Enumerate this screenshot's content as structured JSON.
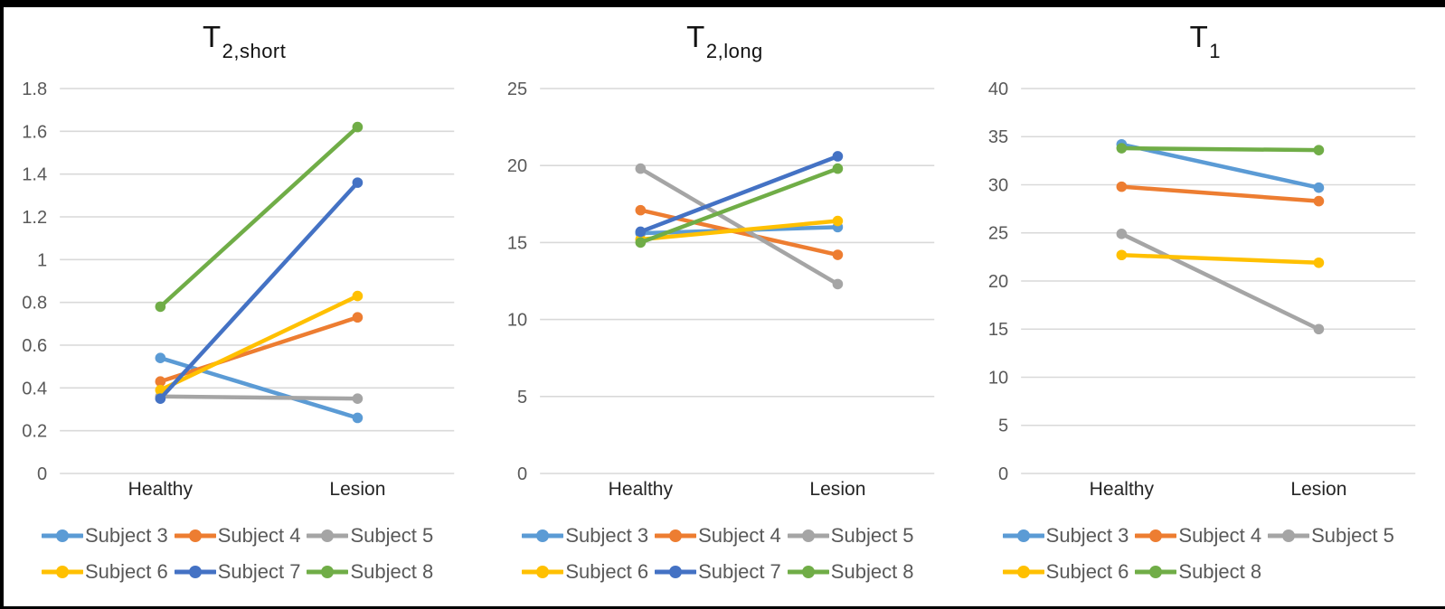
{
  "figure": {
    "background_color": "#FFFFFF",
    "border_color": "#000000",
    "gridline_color": "#D9D9D9",
    "tick_label_color": "#595959",
    "category_label_color": "#262626",
    "legend_text_color": "#595959"
  },
  "chart_data": [
    {
      "type": "line",
      "title_main": "T",
      "title_sub": "2,short",
      "categories": [
        "Healthy",
        "Lesion"
      ],
      "ylim": [
        0,
        1.8
      ],
      "ytick_step": 0.2,
      "yticks": [
        "0",
        "0.2",
        "0.4",
        "0.6",
        "0.8",
        "1",
        "1.2",
        "1.4",
        "1.6",
        "1.8"
      ],
      "grid": true,
      "legend_position": "bottom",
      "series": [
        {
          "name": "Subject 3",
          "color": "#5B9BD5",
          "values": [
            0.54,
            0.26
          ]
        },
        {
          "name": "Subject 4",
          "color": "#ED7D31",
          "values": [
            0.43,
            0.73
          ]
        },
        {
          "name": "Subject 5",
          "color": "#A5A5A5",
          "values": [
            0.36,
            0.35
          ]
        },
        {
          "name": "Subject 6",
          "color": "#FFC000",
          "values": [
            0.39,
            0.83
          ]
        },
        {
          "name": "Subject 7",
          "color": "#4472C4",
          "values": [
            0.35,
            1.36
          ]
        },
        {
          "name": "Subject 8",
          "color": "#70AD47",
          "values": [
            0.78,
            1.62
          ]
        }
      ]
    },
    {
      "type": "line",
      "title_main": "T",
      "title_sub": "2,long",
      "categories": [
        "Healthy",
        "Lesion"
      ],
      "ylim": [
        0,
        25
      ],
      "ytick_step": 5,
      "yticks": [
        "0",
        "5",
        "10",
        "15",
        "20",
        "25"
      ],
      "grid": true,
      "legend_position": "bottom",
      "series": [
        {
          "name": "Subject 3",
          "color": "#5B9BD5",
          "values": [
            15.6,
            16.0
          ]
        },
        {
          "name": "Subject 4",
          "color": "#ED7D31",
          "values": [
            17.1,
            14.2
          ]
        },
        {
          "name": "Subject 5",
          "color": "#A5A5A5",
          "values": [
            19.8,
            12.3
          ]
        },
        {
          "name": "Subject 6",
          "color": "#FFC000",
          "values": [
            15.2,
            16.4
          ]
        },
        {
          "name": "Subject 7",
          "color": "#4472C4",
          "values": [
            15.7,
            20.6
          ]
        },
        {
          "name": "Subject 8",
          "color": "#70AD47",
          "values": [
            15.0,
            19.8
          ]
        }
      ]
    },
    {
      "type": "line",
      "title_main": "T",
      "title_sub": "1",
      "categories": [
        "Healthy",
        "Lesion"
      ],
      "ylim": [
        0,
        40
      ],
      "ytick_step": 5,
      "yticks": [
        "0",
        "5",
        "10",
        "15",
        "20",
        "25",
        "30",
        "35",
        "40"
      ],
      "grid": true,
      "legend_position": "bottom",
      "series": [
        {
          "name": "Subject 3",
          "color": "#5B9BD5",
          "values": [
            34.2,
            29.7
          ]
        },
        {
          "name": "Subject 4",
          "color": "#ED7D31",
          "values": [
            29.8,
            28.3
          ]
        },
        {
          "name": "Subject 5",
          "color": "#A5A5A5",
          "values": [
            24.9,
            15.0
          ]
        },
        {
          "name": "Subject 6",
          "color": "#FFC000",
          "values": [
            22.7,
            21.9
          ]
        },
        {
          "name": "Subject 8",
          "color": "#70AD47",
          "values": [
            33.8,
            33.6
          ]
        }
      ]
    }
  ]
}
